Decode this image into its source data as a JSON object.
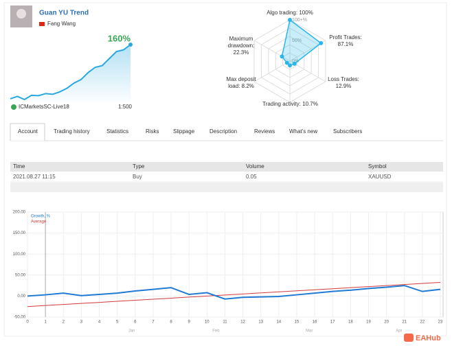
{
  "header": {
    "title": "Guan YU Trend",
    "author": "Fang Wang",
    "server": "ICMarketsSC-Live18",
    "leverage": "1:500"
  },
  "tabs": [
    "Account",
    "Trading history",
    "Statistics",
    "Risks",
    "Slippage",
    "Description",
    "Reviews",
    "What's new",
    "Subscribers"
  ],
  "table": {
    "columns": [
      "Time",
      "Type",
      "Volume",
      "Symbol"
    ],
    "rows": [
      [
        "2021.08.27 11:15",
        "Buy",
        "0.05",
        "XAUUSD"
      ]
    ]
  },
  "watermark": "EAHub",
  "chart_data": [
    {
      "type": "area",
      "growth_label": "160%",
      "color": "#29a8e0",
      "values": [
        5,
        12,
        3,
        15,
        14,
        20,
        18,
        25,
        35,
        50,
        60,
        80,
        95,
        100,
        120,
        140,
        145,
        160
      ]
    },
    {
      "type": "radar",
      "color": "#29b6e8",
      "categories": [
        "Algo trading:",
        "Profit Trades:",
        "Loss Trades:",
        "Trading activity:",
        "Max deposit load:",
        "Maximum drawdown:"
      ],
      "values": [
        100,
        87.1,
        12.9,
        10.7,
        8.2,
        22.3
      ],
      "value_labels": [
        "100%",
        "87.1%",
        "12.9%",
        "10.7%",
        "8.2%",
        "22.3%"
      ],
      "rticks": [
        {
          "value": 100,
          "label": "100+%"
        },
        {
          "value": 50,
          "label": "50%"
        },
        {
          "value": 0,
          "label": "0%"
        }
      ]
    },
    {
      "type": "line",
      "grid": true,
      "xlim": [
        0,
        23
      ],
      "xticks": [
        0,
        1,
        2,
        3,
        4,
        5,
        6,
        7,
        8,
        9,
        10,
        11,
        12,
        13,
        14,
        15,
        16,
        17,
        18,
        19,
        20,
        21,
        22,
        23
      ],
      "ylim": [
        -50,
        200
      ],
      "yticks": [
        {
          "value": 200,
          "label": "200.00"
        },
        {
          "value": 150,
          "label": "150.00"
        },
        {
          "value": 100,
          "label": "100.00"
        },
        {
          "value": 50,
          "label": "50.00"
        },
        {
          "value": 0,
          "label": "0.00"
        },
        {
          "value": -50,
          "label": "-50.00"
        }
      ],
      "x": [
        0,
        1,
        2,
        3,
        4,
        5,
        6,
        7,
        8,
        9,
        10,
        11,
        12,
        13,
        14,
        15,
        16,
        17,
        18,
        19,
        20,
        21,
        22,
        23
      ],
      "months": [
        "Jan",
        "Feb",
        "Mar",
        "Apr"
      ],
      "series": [
        {
          "name": "Growth, %",
          "color": "#1f7ad4",
          "values": [
            0,
            3,
            7,
            1,
            4,
            7,
            12,
            16,
            20,
            4,
            8,
            -7,
            -3,
            -2,
            -1,
            3,
            7,
            11,
            14,
            18,
            21,
            25,
            11,
            16
          ]
        },
        {
          "name": "Average",
          "color": "#d03b3b",
          "values": [
            -25,
            -22.5,
            -20,
            -17.5,
            -15,
            -12.5,
            -10,
            -7.5,
            -5,
            -2.5,
            0,
            2.5,
            5,
            7.5,
            10,
            12.5,
            15,
            17.5,
            20,
            22.5,
            25,
            27.5,
            30,
            32.5
          ]
        }
      ]
    }
  ]
}
